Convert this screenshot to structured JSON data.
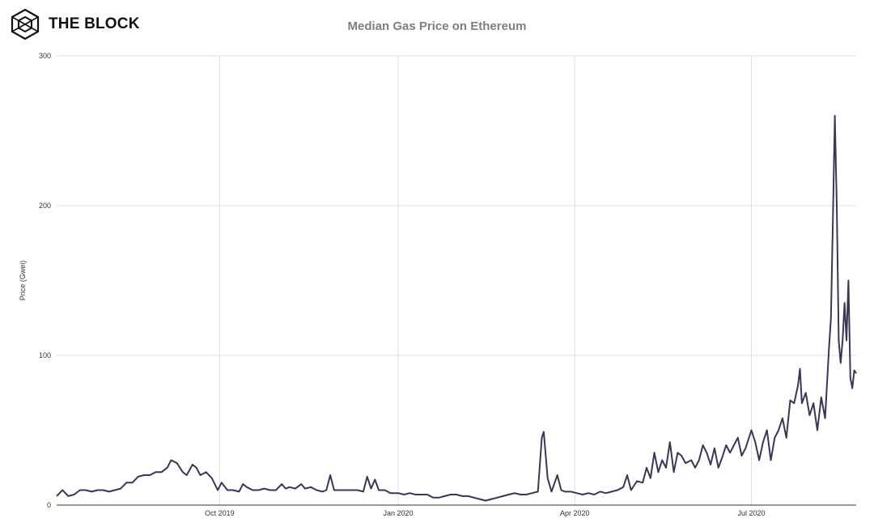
{
  "brand": {
    "name": "THE BLOCK",
    "logo_icon": "cube-hexagon-icon"
  },
  "colors": {
    "line": "#3b3558",
    "grid": "#e0e0e0",
    "axis": "#333333",
    "title": "#7f7f7f"
  },
  "chart_data": {
    "type": "line",
    "title": "Median Gas Price on Ethereum",
    "xlabel": "",
    "ylabel": "Price (Gwei)",
    "ylim": [
      0,
      300
    ],
    "yticks": [
      0,
      100,
      200,
      300
    ],
    "xlim": [
      "2019-07-09",
      "2020-08-24"
    ],
    "xticks": [
      {
        "label": "Oct 2019",
        "date": "2019-10-01"
      },
      {
        "label": "Jan 2020",
        "date": "2020-01-01"
      },
      {
        "label": "Apr 2020",
        "date": "2020-04-01"
      },
      {
        "label": "Jul 2020",
        "date": "2020-07-01"
      }
    ],
    "grid": true,
    "legend": "none",
    "series": [
      {
        "name": "",
        "points": [
          [
            "2019-07-09",
            6
          ],
          [
            "2019-07-12",
            10
          ],
          [
            "2019-07-15",
            6
          ],
          [
            "2019-07-18",
            7
          ],
          [
            "2019-07-21",
            10
          ],
          [
            "2019-07-24",
            10
          ],
          [
            "2019-07-27",
            9
          ],
          [
            "2019-07-30",
            10
          ],
          [
            "2019-08-02",
            10
          ],
          [
            "2019-08-05",
            9
          ],
          [
            "2019-08-08",
            10
          ],
          [
            "2019-08-11",
            11
          ],
          [
            "2019-08-14",
            15
          ],
          [
            "2019-08-17",
            15
          ],
          [
            "2019-08-20",
            19
          ],
          [
            "2019-08-23",
            20
          ],
          [
            "2019-08-26",
            20
          ],
          [
            "2019-08-29",
            22
          ],
          [
            "2019-09-01",
            22
          ],
          [
            "2019-09-04",
            25
          ],
          [
            "2019-09-06",
            30
          ],
          [
            "2019-09-09",
            28
          ],
          [
            "2019-09-12",
            22
          ],
          [
            "2019-09-14",
            20
          ],
          [
            "2019-09-17",
            27
          ],
          [
            "2019-09-19",
            25
          ],
          [
            "2019-09-21",
            20
          ],
          [
            "2019-09-24",
            22
          ],
          [
            "2019-09-27",
            18
          ],
          [
            "2019-09-30",
            10
          ],
          [
            "2019-10-02",
            15
          ],
          [
            "2019-10-05",
            10
          ],
          [
            "2019-10-08",
            10
          ],
          [
            "2019-10-11",
            9
          ],
          [
            "2019-10-13",
            14
          ],
          [
            "2019-10-15",
            12
          ],
          [
            "2019-10-18",
            10
          ],
          [
            "2019-10-21",
            10
          ],
          [
            "2019-10-24",
            11
          ],
          [
            "2019-10-27",
            10
          ],
          [
            "2019-10-30",
            10
          ],
          [
            "2019-11-02",
            14
          ],
          [
            "2019-11-04",
            11
          ],
          [
            "2019-11-06",
            12
          ],
          [
            "2019-11-09",
            11
          ],
          [
            "2019-11-12",
            14
          ],
          [
            "2019-11-14",
            11
          ],
          [
            "2019-11-17",
            12
          ],
          [
            "2019-11-20",
            10
          ],
          [
            "2019-11-23",
            9
          ],
          [
            "2019-11-25",
            10
          ],
          [
            "2019-11-27",
            20
          ],
          [
            "2019-11-29",
            10
          ],
          [
            "2019-12-02",
            10
          ],
          [
            "2019-12-05",
            10
          ],
          [
            "2019-12-08",
            10
          ],
          [
            "2019-12-11",
            10
          ],
          [
            "2019-12-14",
            9
          ],
          [
            "2019-12-16",
            19
          ],
          [
            "2019-12-18",
            11
          ],
          [
            "2019-12-20",
            17
          ],
          [
            "2019-12-22",
            10
          ],
          [
            "2019-12-25",
            10
          ],
          [
            "2019-12-28",
            8
          ],
          [
            "2020-01-01",
            8
          ],
          [
            "2020-01-04",
            7
          ],
          [
            "2020-01-07",
            8
          ],
          [
            "2020-01-10",
            7
          ],
          [
            "2020-01-13",
            7
          ],
          [
            "2020-01-16",
            7
          ],
          [
            "2020-01-19",
            5
          ],
          [
            "2020-01-22",
            5
          ],
          [
            "2020-01-25",
            6
          ],
          [
            "2020-01-28",
            7
          ],
          [
            "2020-01-31",
            7
          ],
          [
            "2020-02-03",
            6
          ],
          [
            "2020-02-06",
            6
          ],
          [
            "2020-02-09",
            5
          ],
          [
            "2020-02-12",
            4
          ],
          [
            "2020-02-15",
            3
          ],
          [
            "2020-02-18",
            4
          ],
          [
            "2020-02-21",
            5
          ],
          [
            "2020-02-24",
            6
          ],
          [
            "2020-02-27",
            7
          ],
          [
            "2020-03-01",
            8
          ],
          [
            "2020-03-04",
            7
          ],
          [
            "2020-03-07",
            7
          ],
          [
            "2020-03-10",
            8
          ],
          [
            "2020-03-13",
            9
          ],
          [
            "2020-03-15",
            45
          ],
          [
            "2020-03-16",
            49
          ],
          [
            "2020-03-18",
            18
          ],
          [
            "2020-03-20",
            9
          ],
          [
            "2020-03-23",
            20
          ],
          [
            "2020-03-25",
            10
          ],
          [
            "2020-03-27",
            9
          ],
          [
            "2020-03-30",
            9
          ],
          [
            "2020-04-02",
            8
          ],
          [
            "2020-04-05",
            7
          ],
          [
            "2020-04-08",
            8
          ],
          [
            "2020-04-11",
            7
          ],
          [
            "2020-04-14",
            9
          ],
          [
            "2020-04-17",
            8
          ],
          [
            "2020-04-20",
            9
          ],
          [
            "2020-04-23",
            10
          ],
          [
            "2020-04-26",
            12
          ],
          [
            "2020-04-28",
            20
          ],
          [
            "2020-04-30",
            10
          ],
          [
            "2020-05-03",
            16
          ],
          [
            "2020-05-06",
            15
          ],
          [
            "2020-05-08",
            25
          ],
          [
            "2020-05-10",
            18
          ],
          [
            "2020-05-12",
            35
          ],
          [
            "2020-05-14",
            22
          ],
          [
            "2020-05-16",
            30
          ],
          [
            "2020-05-18",
            25
          ],
          [
            "2020-05-20",
            42
          ],
          [
            "2020-05-22",
            22
          ],
          [
            "2020-05-24",
            35
          ],
          [
            "2020-05-26",
            33
          ],
          [
            "2020-05-28",
            28
          ],
          [
            "2020-05-31",
            30
          ],
          [
            "2020-06-02",
            25
          ],
          [
            "2020-06-04",
            30
          ],
          [
            "2020-06-06",
            40
          ],
          [
            "2020-06-08",
            35
          ],
          [
            "2020-06-10",
            27
          ],
          [
            "2020-06-12",
            38
          ],
          [
            "2020-06-14",
            25
          ],
          [
            "2020-06-16",
            32
          ],
          [
            "2020-06-18",
            40
          ],
          [
            "2020-06-20",
            35
          ],
          [
            "2020-06-22",
            40
          ],
          [
            "2020-06-24",
            45
          ],
          [
            "2020-06-26",
            33
          ],
          [
            "2020-06-28",
            38
          ],
          [
            "2020-07-01",
            50
          ],
          [
            "2020-07-03",
            42
          ],
          [
            "2020-07-05",
            30
          ],
          [
            "2020-07-07",
            42
          ],
          [
            "2020-07-09",
            50
          ],
          [
            "2020-07-11",
            30
          ],
          [
            "2020-07-13",
            45
          ],
          [
            "2020-07-15",
            50
          ],
          [
            "2020-07-17",
            58
          ],
          [
            "2020-07-19",
            45
          ],
          [
            "2020-07-21",
            70
          ],
          [
            "2020-07-23",
            68
          ],
          [
            "2020-07-25",
            80
          ],
          [
            "2020-07-26",
            91
          ],
          [
            "2020-07-27",
            68
          ],
          [
            "2020-07-29",
            75
          ],
          [
            "2020-07-31",
            60
          ],
          [
            "2020-08-02",
            68
          ],
          [
            "2020-08-04",
            50
          ],
          [
            "2020-08-06",
            72
          ],
          [
            "2020-08-08",
            58
          ],
          [
            "2020-08-10",
            105
          ],
          [
            "2020-08-11",
            125
          ],
          [
            "2020-08-12",
            190
          ],
          [
            "2020-08-13",
            260
          ],
          [
            "2020-08-14",
            200
          ],
          [
            "2020-08-15",
            110
          ],
          [
            "2020-08-16",
            95
          ],
          [
            "2020-08-17",
            110
          ],
          [
            "2020-08-18",
            135
          ],
          [
            "2020-08-19",
            110
          ],
          [
            "2020-08-20",
            150
          ],
          [
            "2020-08-21",
            85
          ],
          [
            "2020-08-22",
            78
          ],
          [
            "2020-08-23",
            90
          ],
          [
            "2020-08-24",
            88
          ]
        ]
      }
    ]
  }
}
